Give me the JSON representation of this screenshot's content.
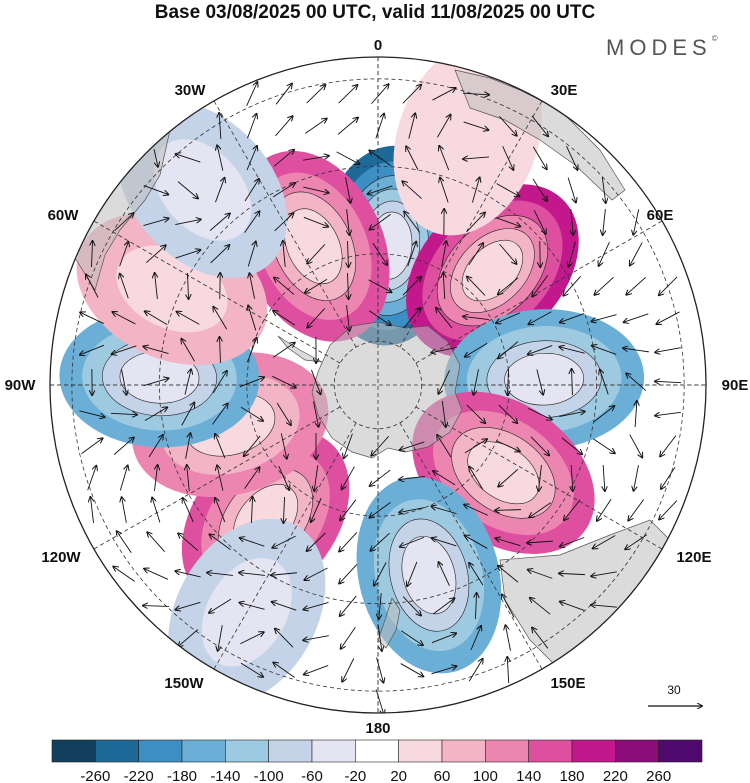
{
  "title": "Base 03/08/2025 00 UTC, valid 11/08/2025 00 UTC",
  "brand": {
    "name": "MODES",
    "mark": "©"
  },
  "longitude_labels": {
    "lon_0": "0",
    "lon_30e": "30E",
    "lon_60e": "60E",
    "lon_90e": "90E",
    "lon_120e": "120E",
    "lon_150e": "150E",
    "lon_180": "180",
    "lon_150w": "150W",
    "lon_120w": "120W",
    "lon_90w": "90W",
    "lon_60w": "60W",
    "lon_30w": "30W"
  },
  "vector_reference": {
    "value": "30"
  },
  "colorbar": {
    "colors": [
      "#123f5c",
      "#1d6a99",
      "#3b8fc4",
      "#6baed6",
      "#9ecae1",
      "#c4d3e8",
      "#e4e4f2",
      "#ffffff",
      "#f8d9df",
      "#f3b4c6",
      "#ec86b0",
      "#df4fa0",
      "#c2188c",
      "#8c0d7a",
      "#4f0a6e"
    ],
    "tick_labels": [
      "-260",
      "-220",
      "-180",
      "-140",
      "-100",
      "-60",
      "-20",
      "20",
      "60",
      "100",
      "140",
      "180",
      "220",
      "260"
    ]
  },
  "anomaly_centers": [
    {
      "lon": 5,
      "lat": -58,
      "value": -240
    },
    {
      "lon": -25,
      "lat": -55,
      "value": 180
    },
    {
      "lon": 45,
      "lat": -53,
      "value": 210
    },
    {
      "lon": 88,
      "lat": -52,
      "value": -170
    },
    {
      "lon": 125,
      "lat": -55,
      "value": 150
    },
    {
      "lon": 165,
      "lat": -45,
      "value": -160
    },
    {
      "lon": -140,
      "lat": -50,
      "value": 170
    },
    {
      "lon": -105,
      "lat": -55,
      "value": 130
    },
    {
      "lon": -88,
      "lat": -40,
      "value": -180
    },
    {
      "lon": -65,
      "lat": -38,
      "value": 80
    },
    {
      "lon": -42,
      "lat": -30,
      "value": -70
    },
    {
      "lon": -150,
      "lat": -30,
      "value": -90
    },
    {
      "lon": 20,
      "lat": -30,
      "value": 60
    }
  ]
}
